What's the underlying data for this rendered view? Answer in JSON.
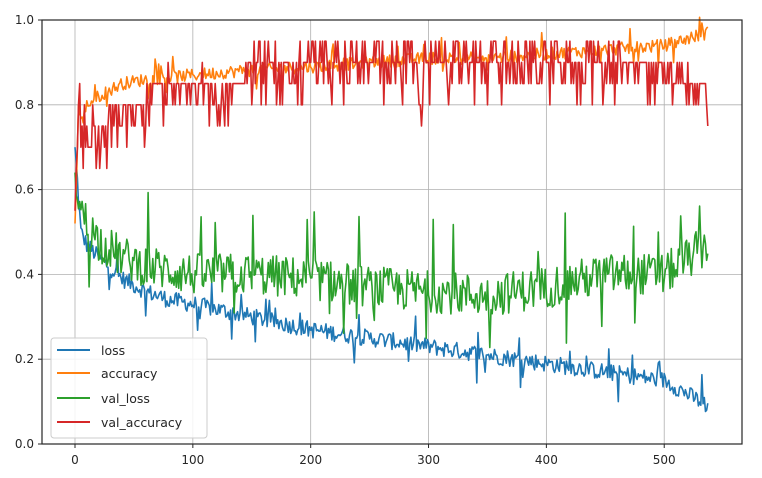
{
  "chart_data": {
    "type": "line",
    "title": "",
    "xlabel": "",
    "ylabel": "",
    "xlim": [
      -28,
      566
    ],
    "ylim": [
      0.0,
      1.0
    ],
    "grid": true,
    "legend_position": "lower left",
    "x_ticks": [
      0,
      100,
      200,
      300,
      400,
      500
    ],
    "y_ticks": [
      0.0,
      0.2,
      0.4,
      0.6,
      0.8,
      1.0
    ],
    "x_tick_labels": [
      "0",
      "100",
      "200",
      "300",
      "400",
      "500"
    ],
    "y_tick_labels": [
      "0.0",
      "0.2",
      "0.4",
      "0.6",
      "0.8",
      "1.0"
    ],
    "num_epochs": 538,
    "series": [
      {
        "name": "loss",
        "color": "#1f77b4",
        "x": [
          0,
          5,
          10,
          20,
          40,
          60,
          80,
          100,
          150,
          200,
          250,
          300,
          350,
          400,
          450,
          500,
          537
        ],
        "values": [
          0.7,
          0.5,
          0.47,
          0.44,
          0.39,
          0.36,
          0.34,
          0.33,
          0.3,
          0.27,
          0.25,
          0.23,
          0.21,
          0.19,
          0.17,
          0.15,
          0.09
        ],
        "noise": 0.02
      },
      {
        "name": "accuracy",
        "color": "#ff7f0e",
        "x": [
          0,
          3,
          6,
          10,
          20,
          40,
          60,
          100,
          140,
          200,
          250,
          300,
          350,
          400,
          450,
          500,
          537
        ],
        "values": [
          0.52,
          0.79,
          0.76,
          0.8,
          0.82,
          0.85,
          0.86,
          0.87,
          0.88,
          0.89,
          0.9,
          0.91,
          0.91,
          0.92,
          0.93,
          0.94,
          0.97
        ],
        "noise": 0.015
      },
      {
        "name": "val_loss",
        "color": "#2ca02c",
        "x": [
          0,
          5,
          10,
          20,
          40,
          60,
          80,
          100,
          150,
          200,
          250,
          300,
          350,
          400,
          450,
          500,
          537
        ],
        "values": [
          0.64,
          0.55,
          0.52,
          0.48,
          0.44,
          0.42,
          0.41,
          0.4,
          0.4,
          0.39,
          0.37,
          0.36,
          0.35,
          0.37,
          0.4,
          0.4,
          0.47
        ],
        "noise": 0.05
      },
      {
        "name": "val_accuracy",
        "color": "#d62728",
        "levels": [
          0.65,
          0.7,
          0.75,
          0.8,
          0.85,
          0.9,
          0.95
        ],
        "x": [
          0,
          3,
          10,
          20,
          40,
          80,
          130,
          160,
          200,
          250,
          300,
          350,
          400,
          450,
          500,
          530,
          537
        ],
        "values": [
          0.55,
          0.8,
          0.7,
          0.75,
          0.8,
          0.85,
          0.85,
          0.9,
          0.9,
          0.9,
          0.9,
          0.9,
          0.9,
          0.9,
          0.9,
          0.85,
          0.85
        ],
        "min_outlier": {
          "x": 294,
          "value": 0.75
        }
      }
    ]
  },
  "legend": {
    "items": [
      {
        "label": "loss",
        "color": "#1f77b4"
      },
      {
        "label": "accuracy",
        "color": "#ff7f0e"
      },
      {
        "label": "val_loss",
        "color": "#2ca02c"
      },
      {
        "label": "val_accuracy",
        "color": "#d62728"
      }
    ]
  }
}
